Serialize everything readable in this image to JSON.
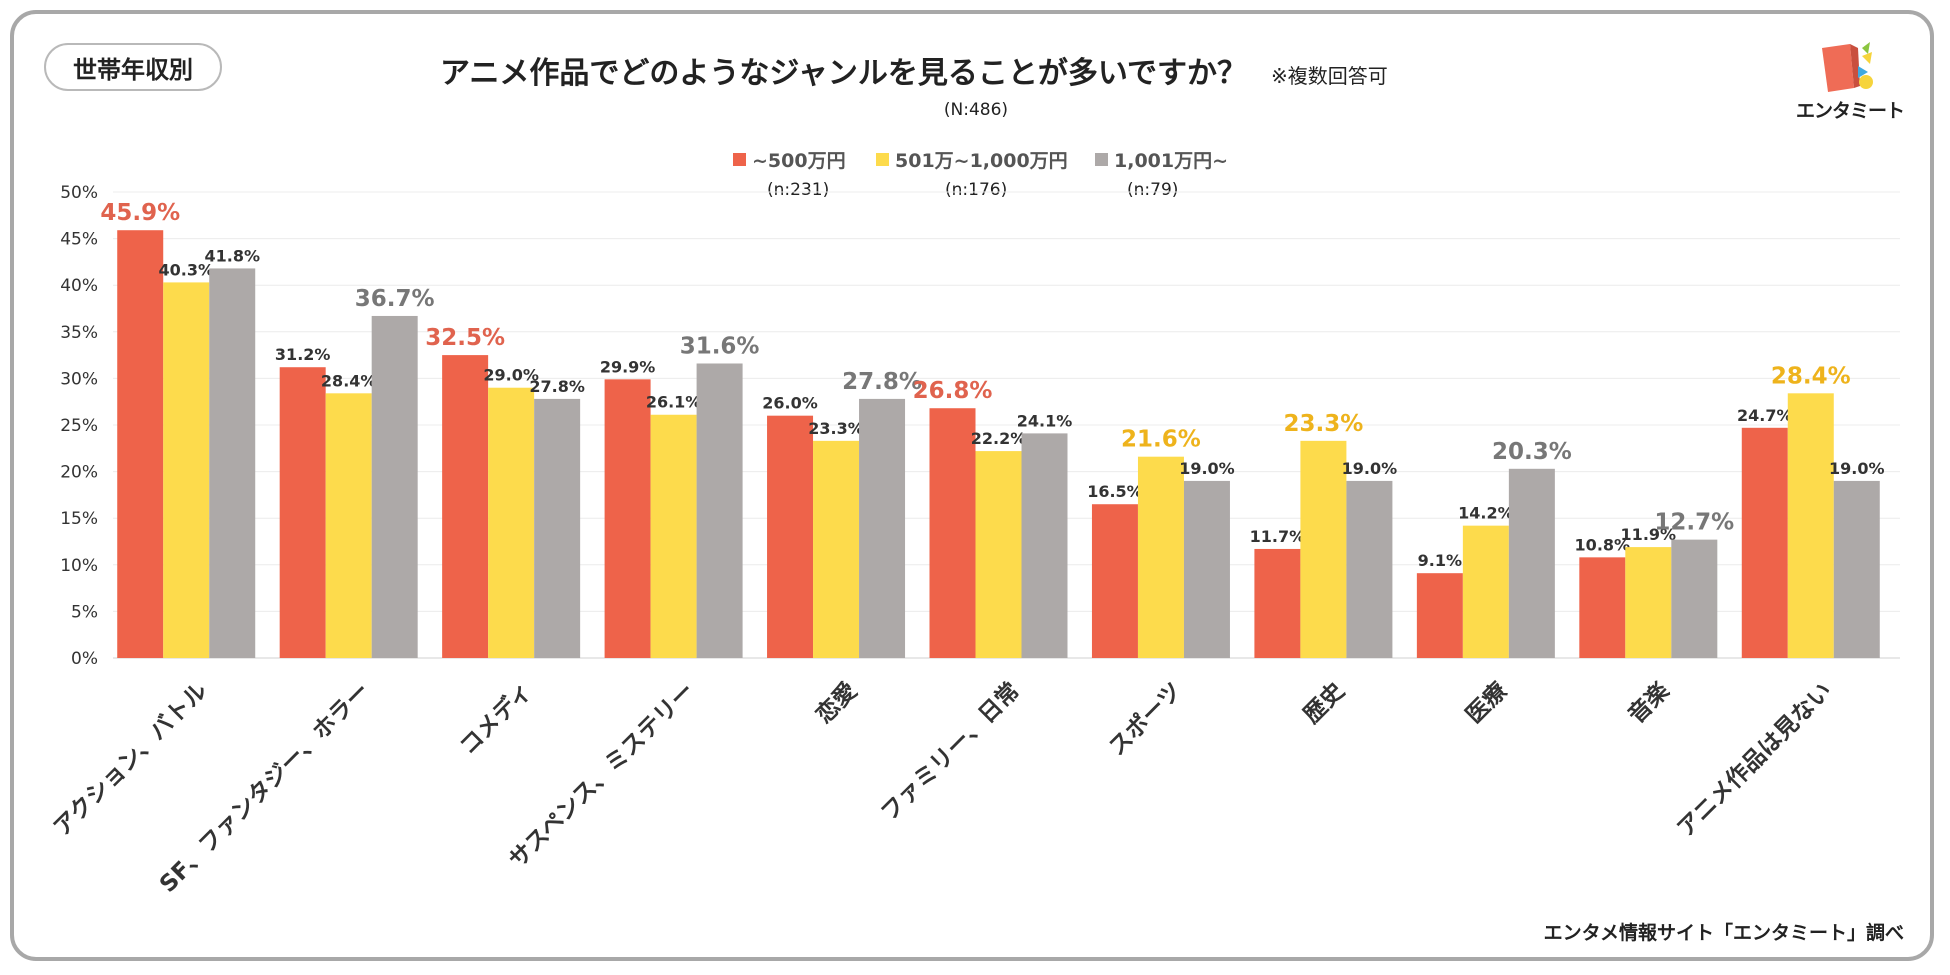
{
  "badge": "世帯年収別",
  "title": "アニメ作品でどのようなジャンルを見ることが多いですか？",
  "note": "※複数回答可",
  "n_total": "(N:486)",
  "legend": [
    {
      "label": "~500万円",
      "n": "(n:231)",
      "color": "#EE634A"
    },
    {
      "label": "501万~1,000万円",
      "n": "(n:176)",
      "color": "#FDDB4C"
    },
    {
      "label": "1,001万円~",
      "n": "(n:79)",
      "color": "#ADA9A8"
    }
  ],
  "logo": {
    "name": "エンタミート"
  },
  "source": "エンタメ情報サイト「エンタミート」調べ",
  "chart_data": {
    "type": "bar",
    "title": "アニメ作品でどのようなジャンルを見ることが多いですか？",
    "categories": [
      "アクション、バトル",
      "SF、ファンタジー、ホラー",
      "コメディ",
      "サスペンス、ミステリー",
      "恋愛",
      "ファミリー、日常",
      "スポーツ",
      "歴史",
      "医療",
      "音楽",
      "アニメ作品は見ない"
    ],
    "series": [
      {
        "name": "~500万円",
        "values": [
          45.9,
          31.2,
          32.5,
          29.9,
          26.0,
          26.8,
          16.5,
          11.7,
          9.1,
          10.8,
          24.7
        ]
      },
      {
        "name": "501万~1,000万円",
        "values": [
          40.3,
          28.4,
          29.0,
          26.1,
          23.3,
          22.2,
          21.6,
          23.3,
          14.2,
          11.9,
          28.4
        ]
      },
      {
        "name": "1,001万円~",
        "values": [
          41.8,
          36.7,
          27.8,
          31.6,
          27.8,
          24.1,
          19.0,
          19.0,
          20.3,
          12.7,
          19.0
        ]
      }
    ],
    "ylim": [
      0,
      50
    ],
    "yticks": [
      "0%",
      "5%",
      "10%",
      "15%",
      "20%",
      "25%",
      "30%",
      "35%",
      "40%",
      "45%",
      "50%"
    ],
    "highlights": [
      [
        0,
        0
      ],
      [
        2,
        0
      ],
      [
        5,
        0
      ],
      [
        1,
        2
      ],
      [
        3,
        2
      ],
      [
        4,
        2
      ],
      [
        8,
        2
      ],
      [
        9,
        2
      ],
      [
        6,
        1
      ],
      [
        7,
        1
      ],
      [
        10,
        1
      ]
    ],
    "highlight_colors": [
      "#E0634E",
      "#EEB31C",
      "#777777"
    ]
  }
}
